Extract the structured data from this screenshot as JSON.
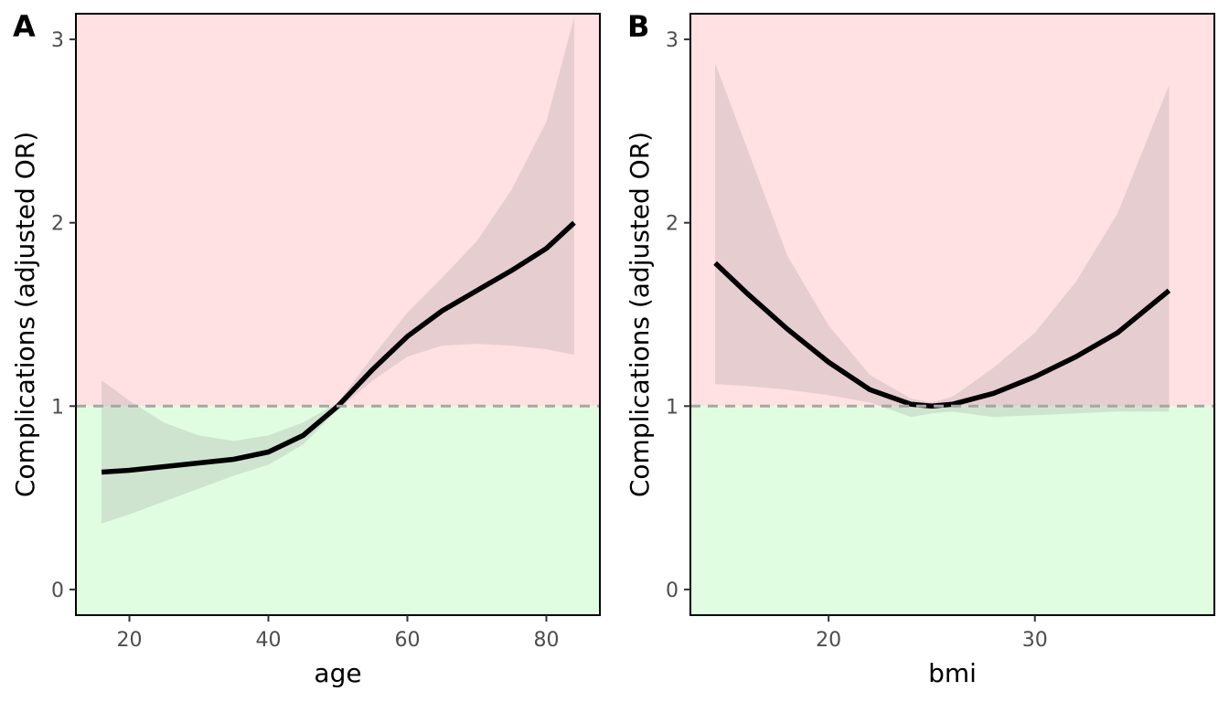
{
  "chart_data": [
    {
      "type": "line",
      "panel_tag": "A",
      "xlabel": "age",
      "ylabel": "Complications (adjusted OR)",
      "xlim": [
        12.3,
        87.7
      ],
      "ylim": [
        -0.14,
        3.14
      ],
      "xticks": [
        20,
        40,
        60,
        80
      ],
      "yticks": [
        0,
        1,
        2,
        3
      ],
      "reference_line": 1,
      "regions": [
        {
          "from": 1,
          "to": 3.14,
          "color": "#ffe0e3"
        },
        {
          "from": -0.14,
          "to": 1,
          "color": "#e1fde1"
        }
      ],
      "series": [
        {
          "x": [
            16,
            20,
            25,
            30,
            35,
            40,
            45,
            50,
            55,
            60,
            65,
            70,
            75,
            80,
            84
          ],
          "y": [
            0.64,
            0.65,
            0.67,
            0.69,
            0.71,
            0.75,
            0.84,
            1.0,
            1.2,
            1.38,
            1.52,
            1.63,
            1.74,
            1.86,
            2.0
          ],
          "lower": [
            0.36,
            0.41,
            0.48,
            0.55,
            0.62,
            0.68,
            0.79,
            0.98,
            1.14,
            1.27,
            1.33,
            1.34,
            1.33,
            1.31,
            1.28
          ],
          "upper": [
            1.14,
            1.03,
            0.91,
            0.84,
            0.81,
            0.84,
            0.91,
            1.02,
            1.27,
            1.51,
            1.7,
            1.9,
            2.18,
            2.55,
            3.12
          ]
        }
      ],
      "grid": false,
      "legend": "none"
    },
    {
      "type": "line",
      "panel_tag": "B",
      "xlabel": "bmi",
      "ylabel": "Complications (adjusted OR)",
      "xlim": [
        13.3,
        38.7
      ],
      "ylim": [
        -0.14,
        3.14
      ],
      "xticks": [
        20,
        30
      ],
      "yticks": [
        0,
        1,
        2,
        3
      ],
      "reference_line": 1,
      "regions": [
        {
          "from": 1,
          "to": 3.14,
          "color": "#ffe0e3"
        },
        {
          "from": -0.14,
          "to": 1,
          "color": "#e1fde1"
        }
      ],
      "series": [
        {
          "x": [
            14.5,
            16,
            18,
            20,
            22,
            24,
            25,
            26,
            28,
            30,
            32,
            34,
            36.5
          ],
          "y": [
            1.78,
            1.62,
            1.42,
            1.24,
            1.09,
            1.01,
            1.0,
            1.01,
            1.07,
            1.16,
            1.27,
            1.4,
            1.63
          ],
          "lower": [
            1.12,
            1.11,
            1.09,
            1.06,
            1.02,
            0.94,
            0.96,
            0.97,
            0.94,
            0.95,
            0.96,
            0.97,
            0.97
          ],
          "upper": [
            2.87,
            2.42,
            1.82,
            1.44,
            1.17,
            1.04,
            1.02,
            1.05,
            1.21,
            1.4,
            1.68,
            2.05,
            2.75
          ]
        }
      ],
      "grid": false,
      "legend": "none"
    }
  ]
}
